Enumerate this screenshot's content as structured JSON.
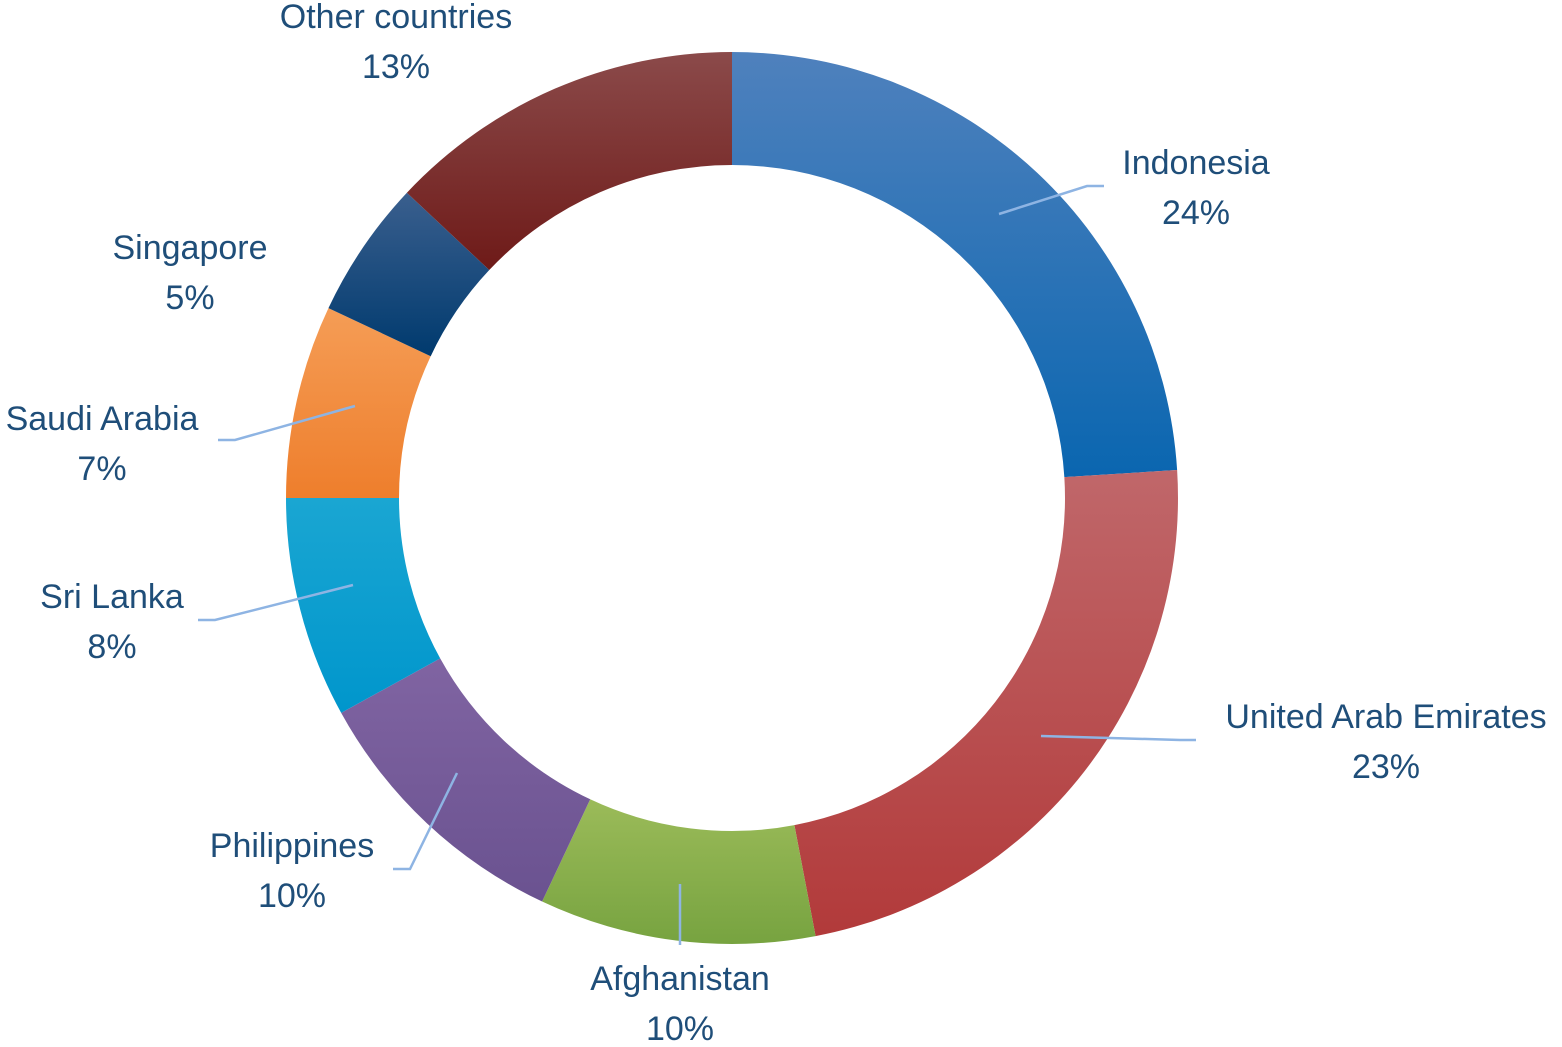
{
  "chart_data": {
    "type": "pie",
    "variant": "doughnut",
    "start_angle_deg": 0,
    "direction": "clockwise",
    "label_color": "#1F4E79",
    "leader_line_color": "#8EB4E3",
    "slices": [
      {
        "label": "Indonesia",
        "value": 24,
        "value_label": "24%",
        "color_light": "#4F81BD",
        "color_dark": "#0A66B0"
      },
      {
        "label": "United Arab Emirates",
        "value": 23,
        "value_label": "23%",
        "color_light": "#C0676A",
        "color_dark": "#B23A3A"
      },
      {
        "label": "Afghanistan",
        "value": 10,
        "value_label": "10%",
        "color_light": "#9BBB59",
        "color_dark": "#77A340"
      },
      {
        "label": "Philippines",
        "value": 10,
        "value_label": "10%",
        "color_light": "#8064A2",
        "color_dark": "#6A5290"
      },
      {
        "label": "Sri Lanka",
        "value": 8,
        "value_label": "8%",
        "color_light": "#1AA6D2",
        "color_dark": "#0096CC"
      },
      {
        "label": "Saudi Arabia",
        "value": 7,
        "value_label": "7%",
        "color_light": "#F59D56",
        "color_dark": "#EE7E2C"
      },
      {
        "label": "Singapore",
        "value": 5,
        "value_label": "5%",
        "color_light": "#3A5F8E",
        "color_dark": "#003A6E"
      },
      {
        "label": "Other countries",
        "value": 13,
        "value_label": "13%",
        "color_light": "#8B4A4A",
        "color_dark": "#6E1A18"
      }
    ]
  }
}
